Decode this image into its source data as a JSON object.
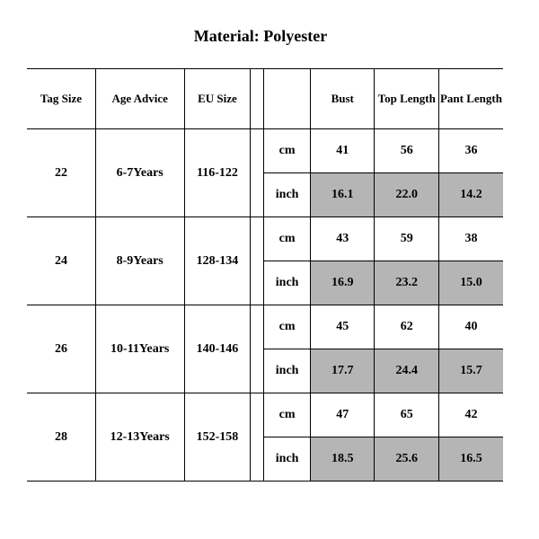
{
  "title": "Material: Polyester",
  "headers": {
    "tag": "Tag Size",
    "age": "Age Advice",
    "eu": "EU Size",
    "bust": "Bust",
    "top": "Top Length",
    "pant": "Pant Length"
  },
  "units": {
    "cm": "cm",
    "inch": "inch"
  },
  "rows": [
    {
      "tag": "22",
      "age": "6-7Years",
      "eu": "116-122",
      "cm": {
        "bust": "41",
        "top": "56",
        "pant": "36"
      },
      "inch": {
        "bust": "16.1",
        "top": "22.0",
        "pant": "14.2"
      }
    },
    {
      "tag": "24",
      "age": "8-9Years",
      "eu": "128-134",
      "cm": {
        "bust": "43",
        "top": "59",
        "pant": "38"
      },
      "inch": {
        "bust": "16.9",
        "top": "23.2",
        "pant": "15.0"
      }
    },
    {
      "tag": "26",
      "age": "10-11Years",
      "eu": "140-146",
      "cm": {
        "bust": "45",
        "top": "62",
        "pant": "40"
      },
      "inch": {
        "bust": "17.7",
        "top": "24.4",
        "pant": "15.7"
      }
    },
    {
      "tag": "28",
      "age": "12-13Years",
      "eu": "152-158",
      "cm": {
        "bust": "47",
        "top": "65",
        "pant": "42"
      },
      "inch": {
        "bust": "18.5",
        "top": "25.6",
        "pant": "16.5"
      }
    }
  ],
  "style": {
    "type": "table",
    "background_color": "#ffffff",
    "border_color": "#000000",
    "shade_color": "#b5b5b5",
    "font_family": "Times New Roman",
    "title_fontsize": 18,
    "cell_fontsize": 14,
    "header_fontsize": 13,
    "header_row_height": 66,
    "data_row_height": 48,
    "col_widths": {
      "tag": 62,
      "age": 80,
      "eu": 60,
      "gap": 12,
      "unit": 42,
      "val": 58
    }
  }
}
